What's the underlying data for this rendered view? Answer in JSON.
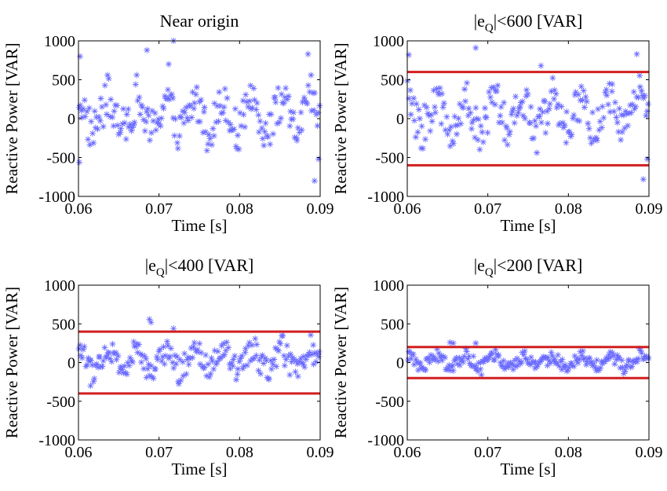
{
  "colors": {
    "points": "#6b6bff",
    "limits": "#d11f1f",
    "axes": "#000000"
  },
  "marker": "asterisk",
  "chart_data": [
    {
      "type": "scatter",
      "title": "Near origin",
      "title_parts": [],
      "xlabel": "Time [s]",
      "ylabel": "Reactive Power [VAR]",
      "xlim": [
        0.06,
        0.09
      ],
      "ylim": [
        -1000,
        1000
      ],
      "xticks": [
        "0.06",
        "0.07",
        "0.08",
        "0.09"
      ],
      "yticks": [
        "-1000",
        "-500",
        "0",
        "500",
        "1000"
      ],
      "grid": false,
      "limit_lines": [],
      "points_per_cycle": 26,
      "spread": 1.0,
      "amplitude": 200,
      "period": 0.0036,
      "spikes": [
        [
          0.0602,
          800
        ],
        [
          0.0685,
          880
        ],
        [
          0.0718,
          1000
        ],
        [
          0.0712,
          700
        ],
        [
          0.0885,
          830
        ],
        [
          0.0601,
          -560
        ],
        [
          0.0893,
          -800
        ],
        [
          0.0898,
          -520
        ]
      ]
    },
    {
      "type": "scatter",
      "title": "",
      "title_parts": [
        "|e",
        "Q",
        "|<600 [VAR]"
      ],
      "xlabel": "Time [s]",
      "ylabel": "Reactive Power [VAR]",
      "xlim": [
        0.06,
        0.09
      ],
      "ylim": [
        -1000,
        1000
      ],
      "xticks": [
        "0.06",
        "0.07",
        "0.08",
        "0.09"
      ],
      "yticks": [
        "-1000",
        "-500",
        "0",
        "500",
        "1000"
      ],
      "grid": false,
      "limit_lines": [
        600,
        -600
      ],
      "points_per_cycle": 26,
      "spread": 1.0,
      "amplitude": 200,
      "period": 0.0036,
      "spikes": [
        [
          0.0602,
          820
        ],
        [
          0.0685,
          910
        ],
        [
          0.0766,
          680
        ],
        [
          0.0885,
          830
        ],
        [
          0.0893,
          -780
        ],
        [
          0.0898,
          -520
        ]
      ]
    },
    {
      "type": "scatter",
      "title": "",
      "title_parts": [
        "|e",
        "Q",
        "|<400 [VAR]"
      ],
      "xlabel": "Time [s]",
      "ylabel": "Reactive Power [VAR]",
      "xlim": [
        0.06,
        0.09
      ],
      "ylim": [
        -1000,
        1000
      ],
      "xticks": [
        "0.06",
        "0.07",
        "0.08",
        "0.09"
      ],
      "yticks": [
        "-1000",
        "-500",
        "0",
        "500",
        "1000"
      ],
      "grid": false,
      "limit_lines": [
        400,
        -400
      ],
      "points_per_cycle": 26,
      "spread": 0.65,
      "amplitude": 130,
      "period": 0.0036,
      "spikes": [
        [
          0.0688,
          560
        ],
        [
          0.069,
          520
        ],
        [
          0.0718,
          440
        ],
        [
          0.0615,
          -300
        ]
      ]
    },
    {
      "type": "scatter",
      "title": "",
      "title_parts": [
        "|e",
        "Q",
        "|<200 [VAR]"
      ],
      "xlabel": "Time [s]",
      "ylabel": "Reactive Power [VAR]",
      "xlim": [
        0.06,
        0.09
      ],
      "ylim": [
        -1000,
        1000
      ],
      "xticks": [
        "0.06",
        "0.07",
        "0.08",
        "0.09"
      ],
      "yticks": [
        "-1000",
        "-500",
        "0",
        "500",
        "1000"
      ],
      "grid": false,
      "limit_lines": [
        200,
        -200
      ],
      "points_per_cycle": 26,
      "spread": 0.3,
      "amplitude": 70,
      "period": 0.0036,
      "spikes": [
        [
          0.0653,
          260
        ],
        [
          0.0657,
          250
        ],
        [
          0.0685,
          250
        ],
        [
          0.0692,
          -160
        ]
      ]
    }
  ]
}
